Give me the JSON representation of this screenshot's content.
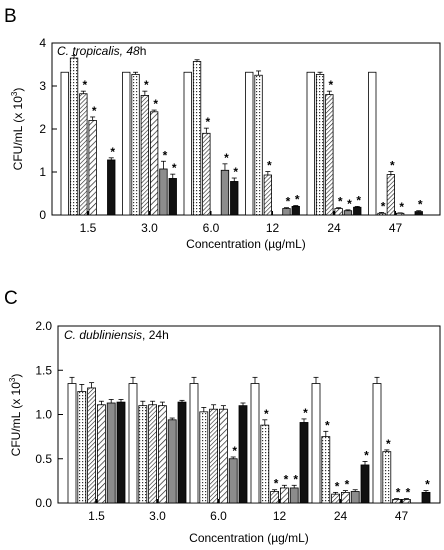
{
  "panels": [
    {
      "letter": "B"
    },
    {
      "letter": "C"
    }
  ],
  "chart_data": [
    {
      "type": "bar",
      "panel_label": "B",
      "title_italic": "C. tropicalis, 48",
      "title_suffix": "h",
      "xlabel": "Concentration (µg/mL)",
      "ylabel_main": "CFU/mL (x 10",
      "ylabel_sup": "3",
      "ylabel_end": ")",
      "categories": [
        "1.5",
        "3.0",
        "6.0",
        "12",
        "24",
        "47"
      ],
      "ylim": [
        0,
        4
      ],
      "yticks": [
        "0",
        "1",
        "2",
        "3",
        "4"
      ],
      "ytick_values": [
        0,
        1,
        2,
        3,
        4
      ],
      "grid": false,
      "significance_marker": "*",
      "series": [
        {
          "style": "white",
          "values": [
            3.32,
            3.32,
            3.32,
            3.32,
            3.32,
            3.32
          ],
          "errors": [
            0,
            0,
            0,
            0,
            0,
            0
          ],
          "significant": [
            false,
            false,
            false,
            false,
            false,
            false
          ]
        },
        {
          "style": "dotted",
          "values": [
            3.65,
            3.27,
            3.57,
            3.25,
            3.27,
            0.04
          ],
          "errors": [
            0.06,
            0.05,
            0.04,
            0.1,
            0.05,
            0.02
          ],
          "significant": [
            false,
            false,
            false,
            false,
            false,
            true
          ]
        },
        {
          "style": "dense",
          "values": [
            2.82,
            2.78,
            1.9,
            0.93,
            2.8,
            0.94
          ],
          "errors": [
            0.06,
            0.1,
            0.12,
            0.08,
            0.08,
            0.07
          ],
          "significant": [
            true,
            true,
            true,
            true,
            true,
            true
          ]
        },
        {
          "style": "hatched",
          "values": [
            2.2,
            2.4,
            0,
            0,
            0.15,
            0.04
          ],
          "errors": [
            0.08,
            0.04,
            0,
            0,
            0.02,
            0.01
          ],
          "significant": [
            true,
            true,
            false,
            false,
            true,
            true
          ]
        },
        {
          "style": "gray",
          "values": [
            0,
            1.07,
            1.04,
            0.15,
            0.1,
            0
          ],
          "errors": [
            0,
            0.18,
            0.15,
            0.02,
            0.02,
            0
          ],
          "significant": [
            false,
            true,
            true,
            true,
            true,
            false
          ]
        },
        {
          "style": "black",
          "values": [
            1.28,
            0.85,
            0.78,
            0.2,
            0.18,
            0.08
          ],
          "errors": [
            0.05,
            0.1,
            0.08,
            0.02,
            0.02,
            0.02
          ],
          "significant": [
            true,
            true,
            true,
            true,
            true,
            true
          ]
        }
      ]
    },
    {
      "type": "bar",
      "panel_label": "C",
      "title_italic": "C. dubliniensis",
      "title_suffix": ", 24h",
      "xlabel": "Concentration (µg/mL)",
      "ylabel_main": "CFU/mL (x 10",
      "ylabel_sup": "3",
      "ylabel_end": ")",
      "categories": [
        "1.5",
        "3.0",
        "6.0",
        "12",
        "24",
        "47"
      ],
      "ylim": [
        0,
        2.0
      ],
      "yticks": [
        "0.0",
        "0.5",
        "1.0",
        "1.5",
        "2.0"
      ],
      "ytick_values": [
        0,
        0.5,
        1.0,
        1.5,
        2.0
      ],
      "grid": false,
      "significance_marker": "*",
      "series": [
        {
          "style": "white",
          "values": [
            1.35,
            1.35,
            1.35,
            1.35,
            1.35,
            1.35
          ],
          "errors": [
            0.07,
            0.07,
            0.07,
            0.07,
            0.07,
            0.07
          ],
          "significant": [
            false,
            false,
            false,
            false,
            false,
            false
          ]
        },
        {
          "style": "dotted",
          "values": [
            1.26,
            1.1,
            1.03,
            0.88,
            0.75,
            0.58
          ],
          "errors": [
            0.08,
            0.05,
            0.05,
            0.06,
            0.06,
            0.02
          ],
          "significant": [
            false,
            false,
            false,
            true,
            true,
            true
          ]
        },
        {
          "style": "dense",
          "values": [
            1.3,
            1.11,
            1.06,
            0.13,
            0.1,
            0.04
          ],
          "errors": [
            0.06,
            0.04,
            0.05,
            0.02,
            0.02,
            0.01
          ],
          "significant": [
            false,
            false,
            false,
            true,
            true,
            true
          ]
        },
        {
          "style": "hatched",
          "values": [
            1.11,
            1.1,
            1.06,
            0.17,
            0.12,
            0.04
          ],
          "errors": [
            0.04,
            0.04,
            0.04,
            0.03,
            0.02,
            0.01
          ],
          "significant": [
            false,
            false,
            false,
            true,
            true,
            true
          ]
        },
        {
          "style": "gray",
          "values": [
            1.13,
            0.94,
            0.5,
            0.17,
            0.13,
            0
          ],
          "errors": [
            0.04,
            0.02,
            0.02,
            0.03,
            0.02,
            0
          ],
          "significant": [
            false,
            false,
            true,
            true,
            false,
            false
          ]
        },
        {
          "style": "black",
          "values": [
            1.14,
            1.14,
            1.1,
            0.91,
            0.43,
            0.12
          ],
          "errors": [
            0.03,
            0.02,
            0.03,
            0.04,
            0.04,
            0.02
          ],
          "significant": [
            false,
            false,
            false,
            true,
            true,
            true
          ]
        }
      ]
    }
  ]
}
